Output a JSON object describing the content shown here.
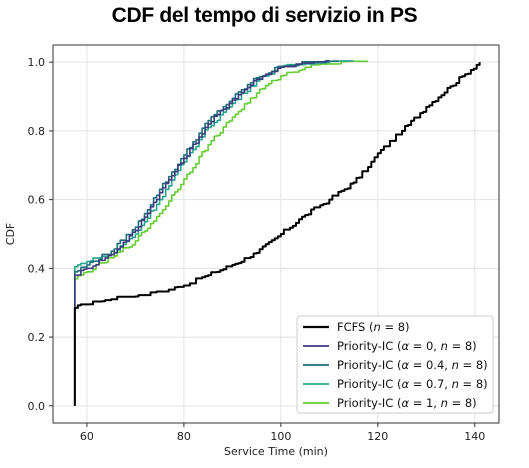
{
  "page": {
    "title": "CDF del tempo di servizio in PS"
  },
  "chart_data": {
    "type": "line",
    "title": "CDF del tempo di servizio in PS",
    "xlabel": "Service Time (min)",
    "ylabel": "CDF",
    "xlim": [
      53,
      145
    ],
    "ylim": [
      -0.05,
      1.05
    ],
    "xticks": [
      60,
      80,
      100,
      120,
      140
    ],
    "yticks": [
      0.0,
      0.2,
      0.4,
      0.6,
      0.8,
      1.0
    ],
    "xtick_labels": [
      "60",
      "80",
      "100",
      "120",
      "140"
    ],
    "ytick_labels": [
      "0.0",
      "0.2",
      "0.4",
      "0.6",
      "0.8",
      "1.0"
    ],
    "grid": true,
    "legend_position": "bottom-right",
    "series": [
      {
        "name": "FCFS (n = 8)",
        "legend": {
          "pre": "FCFS (",
          "sym1": "n",
          "post": " = 8)"
        },
        "color": "#000000",
        "x": [
          57.5,
          57.5,
          60,
          65,
          70,
          75,
          80,
          85,
          90,
          95,
          100,
          105,
          110,
          115,
          118,
          120,
          125,
          130,
          135,
          138,
          141
        ],
        "y": [
          0.0,
          0.285,
          0.295,
          0.31,
          0.318,
          0.33,
          0.35,
          0.38,
          0.41,
          0.445,
          0.5,
          0.555,
          0.6,
          0.65,
          0.695,
          0.735,
          0.8,
          0.87,
          0.93,
          0.965,
          1.0
        ]
      },
      {
        "name": "Priority-IC (α = 0, n = 8)",
        "legend": {
          "pre": "Priority-IC (",
          "sym1": "α",
          "mid": " = 0,  ",
          "sym2": "n",
          "post": " = 8)"
        },
        "color": "#3b3a7e",
        "x": [
          57.5,
          57.5,
          60,
          65,
          70,
          75,
          80,
          85,
          90,
          95,
          100,
          105,
          110
        ],
        "y": [
          0.0,
          0.38,
          0.4,
          0.44,
          0.51,
          0.62,
          0.72,
          0.82,
          0.89,
          0.95,
          0.985,
          0.995,
          1.0
        ]
      },
      {
        "name": "Priority-IC (α = 0.4, n = 8)",
        "legend": {
          "pre": "Priority-IC (",
          "sym1": "α",
          "mid": " = 0.4,  ",
          "sym2": "n",
          "post": " = 8)"
        },
        "color": "#1e6e7a",
        "x": [
          57.5,
          57.5,
          60,
          65,
          70,
          75,
          80,
          85,
          90,
          95,
          100,
          105,
          112
        ],
        "y": [
          0.0,
          0.39,
          0.41,
          0.45,
          0.52,
          0.63,
          0.73,
          0.83,
          0.895,
          0.955,
          0.988,
          0.997,
          1.0
        ]
      },
      {
        "name": "Priority-IC (α = 0.7, n = 8)",
        "legend": {
          "pre": "Priority-IC (",
          "sym1": "α",
          "mid": " = 0.7,  ",
          "sym2": "n",
          "post": " = 8)"
        },
        "color": "#2aa58b",
        "x": [
          57.5,
          57.5,
          60,
          65,
          70,
          75,
          80,
          85,
          90,
          95,
          100,
          105,
          115
        ],
        "y": [
          0.0,
          0.405,
          0.42,
          0.44,
          0.5,
          0.6,
          0.71,
          0.81,
          0.88,
          0.945,
          0.985,
          0.995,
          1.0
        ]
      },
      {
        "name": "Priority-IC (α = 1, n = 8)",
        "legend": {
          "pre": "Priority-IC (",
          "sym1": "α",
          "mid": " = 1,  ",
          "sym2": "n",
          "post": " = 8)"
        },
        "color": "#66cc33",
        "x": [
          57.5,
          57.5,
          60,
          65,
          70,
          75,
          80,
          85,
          90,
          95,
          100,
          105,
          110,
          118
        ],
        "y": [
          0.0,
          0.37,
          0.39,
          0.43,
          0.48,
          0.56,
          0.66,
          0.76,
          0.84,
          0.91,
          0.96,
          0.985,
          0.995,
          1.0
        ]
      }
    ]
  }
}
